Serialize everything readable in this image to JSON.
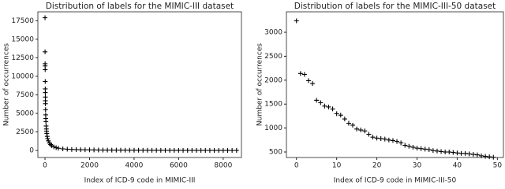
{
  "chart_data": [
    {
      "type": "scatter",
      "title": "Distribution of labels for the MIMIC-III dataset",
      "x_label": "Index of ICD-9 code in MIMIC-III",
      "y_label": "Number of occurrences",
      "marker": "+",
      "color": "#000000",
      "x": [
        0,
        2,
        4,
        6,
        8,
        10,
        12,
        14,
        16,
        18,
        20,
        25,
        30,
        35,
        40,
        50,
        60,
        70,
        80,
        100,
        120,
        150,
        200,
        250,
        300,
        400,
        500,
        600,
        800,
        1000,
        1200,
        1400,
        1600,
        1800,
        2000,
        2200,
        2400,
        2600,
        2800,
        3000,
        3200,
        3400,
        3600,
        3800,
        4000,
        4200,
        4400,
        4600,
        4800,
        5000,
        5200,
        5400,
        5600,
        5800,
        6000,
        6200,
        6400,
        6600,
        6800,
        7000,
        7200,
        7400,
        7600,
        7800,
        8000,
        8200,
        8400,
        8600
      ],
      "y": [
        17900,
        13300,
        11700,
        11400,
        10900,
        9300,
        8300,
        7800,
        7200,
        6700,
        6300,
        5500,
        4800,
        4300,
        3900,
        3300,
        2900,
        2600,
        2300,
        1900,
        1600,
        1300,
        1000,
        800,
        650,
        480,
        380,
        300,
        220,
        170,
        140,
        120,
        100,
        90,
        80,
        70,
        60,
        55,
        50,
        45,
        40,
        37,
        34,
        31,
        28,
        26,
        24,
        22,
        20,
        18,
        17,
        16,
        15,
        14,
        13,
        12,
        11,
        10,
        9,
        8,
        7,
        7,
        6,
        6,
        5,
        5,
        4,
        4
      ],
      "xlim": [
        -320,
        8820
      ],
      "ylim": [
        -950,
        18700
      ],
      "xticks": [
        0,
        2000,
        4000,
        6000,
        8000
      ],
      "yticks": [
        0,
        2500,
        5000,
        7500,
        10000,
        12500,
        15000,
        17500
      ]
    },
    {
      "type": "scatter",
      "title": "Distribution of labels for the MIMIC-III-50 dataset",
      "x_label": "Index of ICD-9 code in MIMIC-III-50",
      "y_label": "Number of occurrences",
      "marker": "+",
      "color": "#000000",
      "x": [
        0,
        1,
        2,
        3,
        4,
        5,
        6,
        7,
        8,
        9,
        10,
        11,
        12,
        13,
        14,
        15,
        16,
        17,
        18,
        19,
        20,
        21,
        22,
        23,
        24,
        25,
        26,
        27,
        28,
        29,
        30,
        31,
        32,
        33,
        34,
        35,
        36,
        37,
        38,
        39,
        40,
        41,
        42,
        43,
        44,
        45,
        46,
        47,
        48,
        49
      ],
      "y": [
        3240,
        2140,
        2120,
        1990,
        1930,
        1580,
        1530,
        1460,
        1440,
        1400,
        1300,
        1270,
        1190,
        1100,
        1060,
        980,
        960,
        940,
        870,
        810,
        790,
        780,
        770,
        750,
        740,
        720,
        690,
        640,
        620,
        600,
        580,
        570,
        560,
        550,
        530,
        520,
        510,
        500,
        500,
        490,
        480,
        470,
        470,
        460,
        450,
        440,
        420,
        410,
        400,
        390
      ],
      "xlim": [
        -2.5,
        51.5
      ],
      "ylim": [
        385,
        3428
      ],
      "xticks": [
        0,
        10,
        20,
        30,
        40,
        50
      ],
      "yticks": [
        500,
        1000,
        1500,
        2000,
        2500,
        3000
      ]
    }
  ]
}
